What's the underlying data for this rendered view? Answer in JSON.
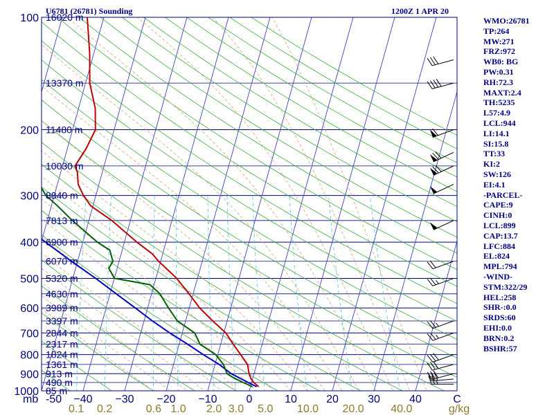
{
  "header": {
    "station_title": "U6781 (26781) Sounding",
    "valid_time": "1200Z  1 APR 20"
  },
  "indices": [
    "WMO:26781",
    "TP:264",
    "MW:271",
    "FRZ:972",
    "WB0: BG",
    "PW:0.31",
    "RH:72.3",
    "MAXT:2.4",
    "TH:5235",
    "L57:4.9",
    "LCL:944",
    "LI:14.1",
    "SI:15.8",
    "TT:33",
    "KI:2",
    "SW:126",
    "EI:4.1",
    "-PARCEL-",
    "CAPE:9",
    "CINH:0",
    "LCL:899",
    "CAP:13.7",
    "LFC:884",
    "EL:824",
    "MPL:794",
    "-WIND-",
    "STM:322/29",
    "HEL:258",
    "SHR-:0.0",
    "SRDS:60",
    "EHI:0.0",
    "BRN:0.2",
    "BSHR:57"
  ],
  "colors": {
    "frame": "#00007f",
    "isobar": "#00007f",
    "isotherm": "#3f3fbf",
    "dry_adiabat": "#3caa3c",
    "moist_adiabat": "#c8a880",
    "mixing_ratio": "#66c8dd",
    "temperature": "#bf0000",
    "dewpoint": "#005f00",
    "parcel": "#0000bf",
    "label": "#00007f",
    "mixing_label": "#8c7a2a"
  },
  "chart_data": {
    "type": "skew-t",
    "y_axis": {
      "quantity": "pressure",
      "unit": "mb",
      "scale": "log",
      "range": [
        1000,
        100
      ],
      "tick_labels": [
        "100",
        "200",
        "300",
        "400",
        "500",
        "600",
        "700",
        "800",
        "900",
        "1000"
      ]
    },
    "x_axis": {
      "quantity": "temperature",
      "unit": "C",
      "unit_label": "C",
      "pressure_unit_label": "mb",
      "range": [
        -50,
        50
      ],
      "tick_values": [
        -50,
        -40,
        -30,
        -20,
        -10,
        0,
        10,
        20,
        30,
        40
      ],
      "tick_labels": [
        "-50",
        "−40",
        "−30",
        "−20",
        "−10",
        "0",
        "10",
        "20",
        "30",
        "40"
      ]
    },
    "height_labels": [
      {
        "p": 100,
        "label": "16020 m"
      },
      {
        "p": 150,
        "label": "13370 m"
      },
      {
        "p": 200,
        "label": "11480 m"
      },
      {
        "p": 250,
        "label": "10030 m"
      },
      {
        "p": 300,
        "label": "8840 m"
      },
      {
        "p": 350,
        "label": "7813 m"
      },
      {
        "p": 400,
        "label": "6900 m"
      },
      {
        "p": 450,
        "label": "6070 m"
      },
      {
        "p": 500,
        "label": "5320 m"
      },
      {
        "p": 550,
        "label": "4630 m"
      },
      {
        "p": 600,
        "label": "3989 m"
      },
      {
        "p": 650,
        "label": "3397 m"
      },
      {
        "p": 700,
        "label": "2844 m"
      },
      {
        "p": 750,
        "label": "2317 m"
      },
      {
        "p": 800,
        "label": "1824 m"
      },
      {
        "p": 850,
        "label": "1361 m"
      },
      {
        "p": 900,
        "label": "913 m"
      },
      {
        "p": 950,
        "label": "490 m"
      },
      {
        "p": 1000,
        "label": "85 m"
      }
    ],
    "mixing_ratio": {
      "unit_label": "g/kg",
      "values": [
        0.1,
        0.2,
        0.6,
        1.0,
        2.0,
        3.0,
        5.0,
        10.0,
        20.0,
        40.0
      ],
      "labels": [
        "0.1",
        "0.2",
        "0.6",
        "1.0",
        "2.0",
        "3.0",
        "5.0",
        "10.0",
        "20.0",
        "40.0"
      ]
    },
    "temperature_profile": [
      {
        "p": 975,
        "t": 2.0
      },
      {
        "p": 950,
        "t": 0.5
      },
      {
        "p": 925,
        "t": -0.5
      },
      {
        "p": 900,
        "t": -1.2
      },
      {
        "p": 850,
        "t": -2.2
      },
      {
        "p": 800,
        "t": -4.5
      },
      {
        "p": 750,
        "t": -7.0
      },
      {
        "p": 700,
        "t": -9.5
      },
      {
        "p": 650,
        "t": -13.5
      },
      {
        "p": 600,
        "t": -17.5
      },
      {
        "p": 550,
        "t": -21.0
      },
      {
        "p": 500,
        "t": -25.0
      },
      {
        "p": 450,
        "t": -30.5
      },
      {
        "p": 430,
        "t": -32.5
      },
      {
        "p": 400,
        "t": -37.0
      },
      {
        "p": 350,
        "t": -44.5
      },
      {
        "p": 320,
        "t": -50.5
      },
      {
        "p": 300,
        "t": -53.0
      },
      {
        "p": 280,
        "t": -55.0
      },
      {
        "p": 260,
        "t": -56.0
      },
      {
        "p": 250,
        "t": -57.0
      },
      {
        "p": 225,
        "t": -55.5
      },
      {
        "p": 200,
        "t": -54.5
      },
      {
        "p": 175,
        "t": -56.0
      },
      {
        "p": 150,
        "t": -59.0
      },
      {
        "p": 125,
        "t": -61.0
      },
      {
        "p": 100,
        "t": -64.0
      }
    ],
    "dewpoint_profile": [
      {
        "p": 975,
        "td": 0.5
      },
      {
        "p": 950,
        "td": -2.0
      },
      {
        "p": 925,
        "td": -4.5
      },
      {
        "p": 900,
        "td": -6.5
      },
      {
        "p": 850,
        "td": -8.0
      },
      {
        "p": 800,
        "td": -10.5
      },
      {
        "p": 750,
        "td": -15.0
      },
      {
        "p": 700,
        "td": -17.0
      },
      {
        "p": 650,
        "td": -22.0
      },
      {
        "p": 600,
        "td": -25.0
      },
      {
        "p": 550,
        "td": -28.0
      },
      {
        "p": 520,
        "td": -31.0
      },
      {
        "p": 500,
        "td": -40.0
      },
      {
        "p": 470,
        "td": -42.0
      },
      {
        "p": 450,
        "td": -41.5
      },
      {
        "p": 420,
        "td": -43.0
      },
      {
        "p": 400,
        "td": -46.5
      },
      {
        "p": 350,
        "td": -54.0
      },
      {
        "p": 320,
        "td": -58.5
      },
      {
        "p": 300,
        "td": -62.0
      },
      {
        "p": 275,
        "td": -65.0
      },
      {
        "p": 250,
        "td": -68.5
      },
      {
        "p": 225,
        "td": -69.0
      },
      {
        "p": 200,
        "td": -71.0
      },
      {
        "p": 175,
        "td": -73.5
      },
      {
        "p": 150,
        "td": -76.5
      },
      {
        "p": 125,
        "td": -79.5
      },
      {
        "p": 100,
        "td": -85.0
      }
    ],
    "parcel_path": [
      {
        "p": 975,
        "t": 1.5
      },
      {
        "p": 950,
        "t": -0.8
      },
      {
        "p": 900,
        "t": -5.5
      },
      {
        "p": 850,
        "t": -9.0
      },
      {
        "p": 800,
        "t": -13.5
      },
      {
        "p": 750,
        "t": -18.0
      },
      {
        "p": 700,
        "t": -23.0
      },
      {
        "p": 650,
        "t": -28.0
      },
      {
        "p": 600,
        "t": -33.0
      },
      {
        "p": 550,
        "t": -38.5
      },
      {
        "p": 500,
        "t": -44.5
      },
      {
        "p": 450,
        "t": -51.5
      },
      {
        "p": 400,
        "t": -59.0
      },
      {
        "p": 350,
        "t": -67.5
      },
      {
        "p": 300,
        "t": -77.0
      },
      {
        "p": 250,
        "t": -88.0
      },
      {
        "p": 200,
        "t": -101.0
      },
      {
        "p": 150,
        "t": -117.0
      },
      {
        "p": 100,
        "t": -140.0
      }
    ],
    "winds": [
      {
        "p": 960,
        "dir": 270,
        "kt": 25
      },
      {
        "p": 930,
        "dir": 265,
        "kt": 30
      },
      {
        "p": 900,
        "dir": 255,
        "kt": 30
      },
      {
        "p": 850,
        "dir": 255,
        "kt": 30
      },
      {
        "p": 800,
        "dir": 250,
        "kt": 30
      },
      {
        "p": 700,
        "dir": 250,
        "kt": 25
      },
      {
        "p": 650,
        "dir": 250,
        "kt": 25
      },
      {
        "p": 500,
        "dir": 250,
        "kt": 25
      },
      {
        "p": 450,
        "dir": 250,
        "kt": 20
      },
      {
        "p": 350,
        "dir": 245,
        "kt": 50
      },
      {
        "p": 280,
        "dir": 245,
        "kt": 50
      },
      {
        "p": 250,
        "dir": 245,
        "kt": 70
      },
      {
        "p": 230,
        "dir": 245,
        "kt": 70
      },
      {
        "p": 200,
        "dir": 250,
        "kt": 60
      },
      {
        "p": 150,
        "dir": 255,
        "kt": 40
      },
      {
        "p": 130,
        "dir": 255,
        "kt": 30
      }
    ]
  }
}
